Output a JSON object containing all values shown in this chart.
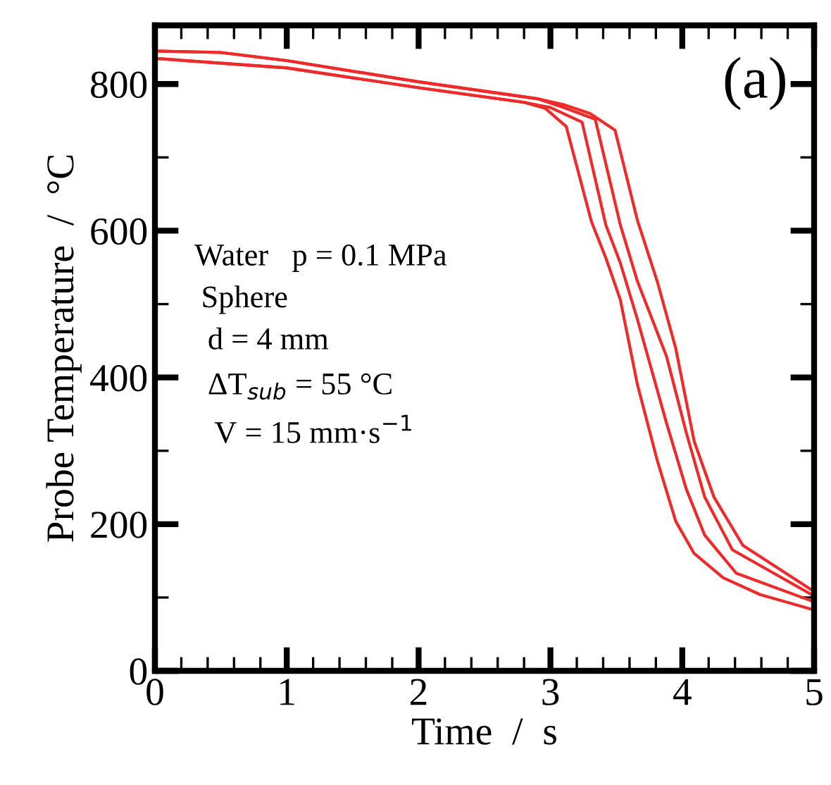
{
  "chart_data": {
    "type": "line",
    "xlabel": "Time  /  s",
    "ylabel": "Probe Temperature  /  °C",
    "xlim": [
      0,
      5
    ],
    "ylim": [
      0,
      880
    ],
    "xticks": [
      0,
      {
        "value": 0.2,
        "label": null
      },
      {
        "value": 0.4,
        "label": null
      },
      {
        "value": 0.6,
        "label": null
      },
      {
        "value": 0.8,
        "label": null
      },
      1,
      {
        "value": 1.2,
        "label": null
      },
      {
        "value": 1.4,
        "label": null
      },
      {
        "value": 1.6,
        "label": null
      },
      {
        "value": 1.8,
        "label": null
      },
      2,
      {
        "value": 2.2,
        "label": null
      },
      {
        "value": 2.4,
        "label": null
      },
      {
        "value": 2.6,
        "label": null
      },
      {
        "value": 2.8,
        "label": null
      },
      3,
      {
        "value": 3.2,
        "label": null
      },
      {
        "value": 3.4,
        "label": null
      },
      {
        "value": 3.6,
        "label": null
      },
      {
        "value": 3.8,
        "label": null
      },
      4,
      {
        "value": 4.2,
        "label": null
      },
      {
        "value": 4.4,
        "label": null
      },
      {
        "value": 4.6,
        "label": null
      },
      {
        "value": 4.8,
        "label": null
      },
      5
    ],
    "yticks": [
      0,
      {
        "value": 100,
        "label": null
      },
      200,
      {
        "value": 300,
        "label": null
      },
      400,
      {
        "value": 500,
        "label": null
      },
      600,
      {
        "value": 700,
        "label": null
      },
      800
    ],
    "grid": false,
    "legend": false,
    "marker": "none",
    "line_style": "solid",
    "series": [
      {
        "color": "#ee2a2a",
        "x": [
          0,
          1,
          2,
          2.8,
          2.96,
          3.12,
          3.31,
          3.42,
          3.53,
          3.66,
          3.81,
          3.95,
          4.09,
          4.31,
          4.59,
          5
        ],
        "values": [
          835,
          822,
          795,
          775,
          767,
          742,
          613,
          563,
          506,
          390,
          287,
          204,
          160,
          127,
          104,
          83
        ]
      },
      {
        "color": "#ee2a2a",
        "x": [
          0,
          1,
          2,
          2.8,
          3.0,
          3.24,
          3.42,
          3.53,
          3.66,
          3.88,
          4.03,
          4.17,
          4.41,
          5
        ],
        "values": [
          835,
          822,
          795,
          775,
          768,
          748,
          608,
          556,
          479,
          338,
          248,
          185,
          133,
          94
        ]
      },
      {
        "color": "#ee2a2a",
        "x": [
          0,
          0.5,
          1,
          2,
          2.9,
          3.1,
          3.34,
          3.53,
          3.66,
          3.88,
          4.03,
          4.17,
          4.38,
          5
        ],
        "values": [
          845,
          843,
          832,
          803,
          780,
          768,
          752,
          608,
          531,
          429,
          325,
          237,
          165,
          102
        ]
      },
      {
        "color": "#ee2a2a",
        "x": [
          0,
          0.5,
          1,
          2,
          2.9,
          3.1,
          3.3,
          3.49,
          3.66,
          3.81,
          3.95,
          4.09,
          4.24,
          4.46,
          5
        ],
        "values": [
          845,
          843,
          832,
          803,
          780,
          772,
          760,
          737,
          614,
          531,
          440,
          313,
          237,
          171,
          108
        ]
      }
    ],
    "annotations": [
      "(a)",
      "Water   p = 0.1 MPa",
      "Sphere",
      "d = 4 mm",
      "ΔT$_{sub}$ = 55 °C",
      "V = 15 mm·s$^{−1}$"
    ]
  }
}
